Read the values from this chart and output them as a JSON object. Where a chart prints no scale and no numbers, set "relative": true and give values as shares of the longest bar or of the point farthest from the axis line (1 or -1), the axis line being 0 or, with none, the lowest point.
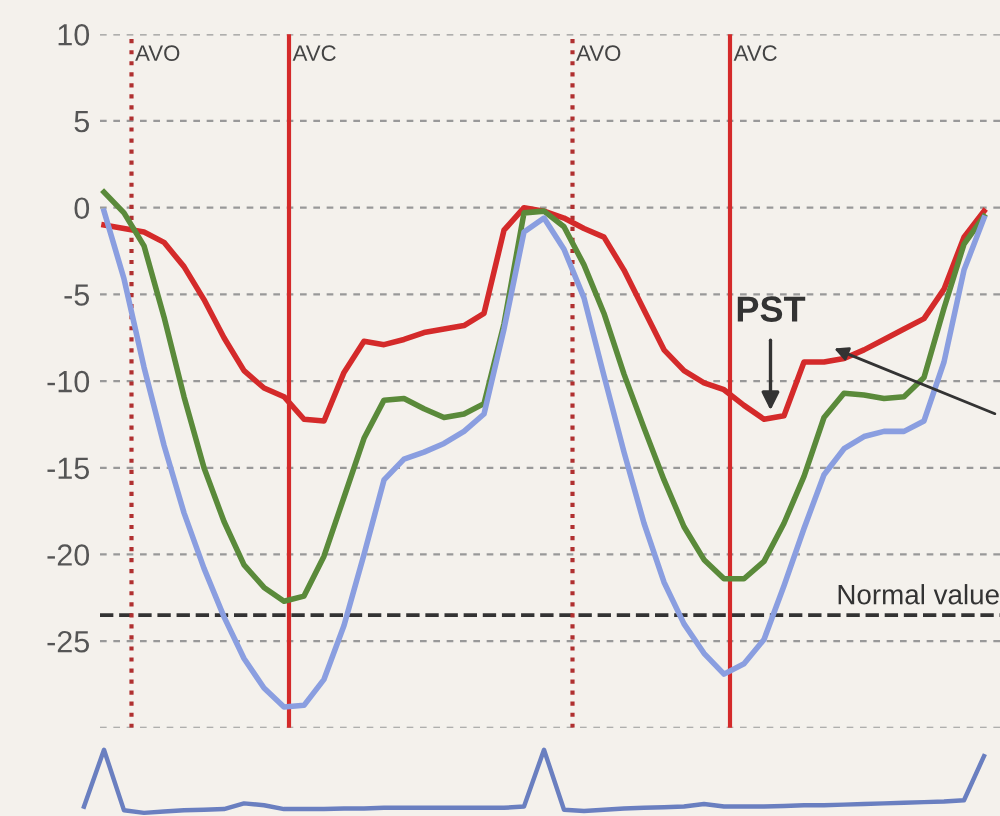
{
  "chart_data": [
    {
      "type": "line",
      "categories": [
        null,
        null,
        null,
        null,
        null,
        null,
        null,
        null,
        null,
        null,
        null,
        null,
        null,
        null,
        null,
        null,
        null,
        null,
        null,
        null,
        null,
        null,
        null,
        null,
        null,
        null,
        null,
        null,
        null,
        null,
        null,
        null,
        null,
        null,
        null,
        null,
        null,
        null,
        null,
        null,
        null,
        null,
        null,
        null,
        null
      ],
      "ylim": [
        -30,
        10
      ],
      "yticks": [
        10,
        5,
        0,
        -5,
        -10,
        -15,
        -20,
        -25,
        {
          "value": -30,
          "label": null
        }
      ],
      "grid": "y",
      "line_style": "solid",
      "marker": "none",
      "series": [
        {
          "color": "#d42a2a",
          "values": [
            -1.0,
            -1.2,
            -1.4,
            -2.0,
            -3.4,
            -5.3,
            -7.5,
            -9.4,
            -10.4,
            -10.9,
            -12.2,
            -12.3,
            -9.5,
            -7.7,
            -7.9,
            -7.6,
            -7.2,
            -7.0,
            -6.8,
            -6.1,
            -1.3,
            0,
            -0.2,
            -0.6,
            -1.2,
            -1.7,
            -3.6,
            -5.9,
            -8.2,
            -9.4,
            -10.1,
            -10.5,
            -11.4,
            -12.2,
            -12.0,
            -8.9,
            -8.9,
            -8.7,
            -8.2,
            -7.6,
            -7.0,
            -6.4,
            -4.7,
            -1.7,
            -0.2
          ]
        },
        {
          "color": "#5a8a3a",
          "values": [
            0.9,
            -0.3,
            -2.2,
            -6.3,
            -10.9,
            -15.0,
            -18.1,
            -20.6,
            -21.9,
            -22.7,
            -22.4,
            -20.1,
            -16.7,
            -13.3,
            -11.1,
            -11.0,
            -11.6,
            -12.1,
            -11.9,
            -11.3,
            -6.7,
            -0.3,
            -0.2,
            -1.1,
            -3.3,
            -6.1,
            -9.6,
            -12.7,
            -15.7,
            -18.4,
            -20.3,
            -21.4,
            -21.4,
            -20.4,
            -18.2,
            -15.5,
            -12.1,
            -10.7,
            -10.8,
            -11.0,
            -10.9,
            -9.8,
            -5.8,
            -2.1,
            -0.5
          ]
        },
        {
          "color": "#8a9ee0",
          "values": [
            -0.2,
            -4.1,
            -9.2,
            -13.7,
            -17.6,
            -20.8,
            -23.6,
            -26.0,
            -27.7,
            -28.8,
            -28.7,
            -27.2,
            -24.1,
            -20.0,
            -15.7,
            -14.5,
            -14.1,
            -13.6,
            -12.9,
            -11.9,
            -7.0,
            -1.4,
            -0.6,
            -2.4,
            -5.2,
            -9.7,
            -14.1,
            -18.2,
            -21.6,
            -24.0,
            -25.7,
            -26.9,
            -26.3,
            -24.9,
            -21.8,
            -18.5,
            -15.4,
            -13.9,
            -13.2,
            -12.9,
            -12.9,
            -12.3,
            -8.9,
            -3.6,
            -0.6
          ]
        }
      ],
      "ref_lines": [
        {
          "axis": "y",
          "value": -23.5,
          "label": "Normal value",
          "color": "#333333",
          "line_style": "dashed"
        }
      ],
      "annotations": [
        "AVO",
        "AVC",
        "AVO",
        "AVC",
        {
          "text": "PST",
          "y": -12
        }
      ]
    },
    {
      "type": "line",
      "relative": true,
      "categories": [
        null,
        null,
        null,
        null,
        null,
        null,
        null,
        null,
        null,
        null,
        null,
        null,
        null,
        null,
        null,
        null,
        null,
        null,
        null,
        null,
        null,
        null,
        null,
        null,
        null,
        null,
        null,
        null,
        null,
        null,
        null,
        null,
        null,
        null,
        null,
        null,
        null,
        null,
        null,
        null,
        null,
        null,
        null,
        null,
        null,
        null
      ],
      "series": [
        {
          "color": "#6a7fc0",
          "values": [
            0.1,
            1.0,
            0.04,
            0,
            0.02,
            0.04,
            0.05,
            0.06,
            0.15,
            0.12,
            0.06,
            0.06,
            0.06,
            0.07,
            0.07,
            0.08,
            0.08,
            0.08,
            0.08,
            0.08,
            0.08,
            0.08,
            0.1,
            1.0,
            0.05,
            0.03,
            0.05,
            0.07,
            0.08,
            0.09,
            0.1,
            0.14,
            0.1,
            0.1,
            0.1,
            0.11,
            0.12,
            0.12,
            0.13,
            0.14,
            0.15,
            0.16,
            0.17,
            0.18,
            0.2,
            0.9
          ]
        }
      ]
    }
  ]
}
